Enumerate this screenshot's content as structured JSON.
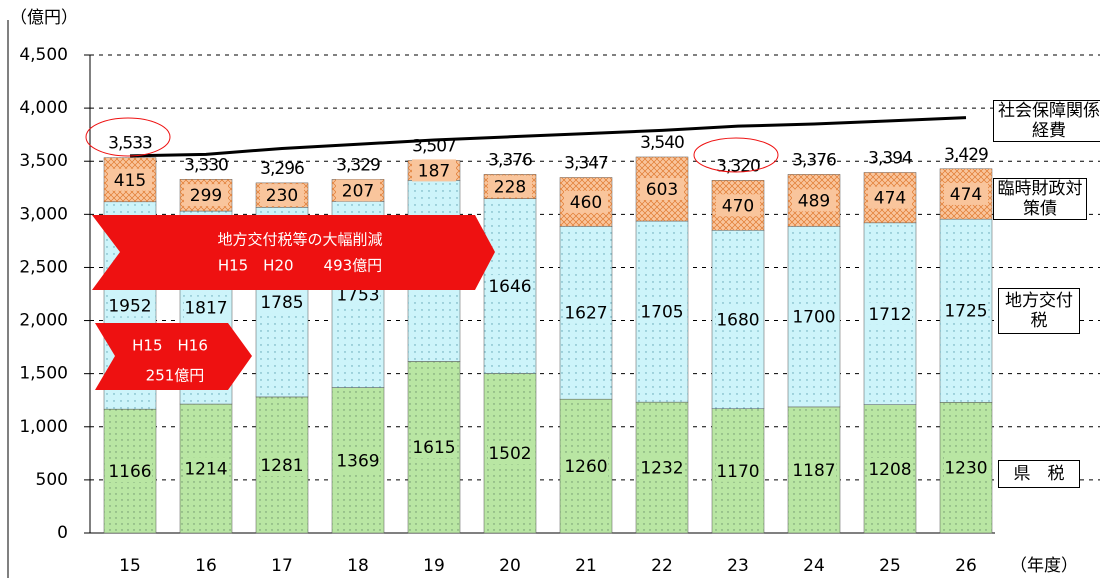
{
  "chart_data": {
    "type": "stacked_bar_line",
    "y_label": "（億円）",
    "x_label": "（年度）",
    "categories": [
      "15",
      "16",
      "17",
      "18",
      "19",
      "20",
      "21",
      "22",
      "23",
      "24",
      "25",
      "26"
    ],
    "series": [
      {
        "name": "県　税",
        "color": "#b9e6a3",
        "values": [
          1166,
          1214,
          1281,
          1369,
          1615,
          1502,
          1260,
          1232,
          1170,
          1187,
          1208,
          1230
        ]
      },
      {
        "name": "地方交付税",
        "color": "#cdf4fa",
        "values": [
          1952,
          1817,
          1785,
          1753,
          1705,
          1646,
          1627,
          1705,
          1680,
          1700,
          1712,
          1725
        ]
      },
      {
        "name": "臨時財政対策債",
        "color": "#f9c59c",
        "values": [
          415,
          299,
          230,
          207,
          187,
          228,
          460,
          603,
          470,
          489,
          474,
          474
        ]
      },
      {
        "name": "社会保障関係経費",
        "color": "#000000",
        "kind": "line",
        "values": [
          3550,
          3565,
          3620,
          3660,
          3700,
          3730,
          3760,
          3790,
          3830,
          3850,
          3880,
          3910
        ]
      }
    ],
    "totals": [
      3533,
      3330,
      3296,
      3329,
      3507,
      3376,
      3347,
      3540,
      3320,
      3376,
      3394,
      3429
    ],
    "total_labels": [
      "3,533",
      "3,330",
      "3,296",
      "3,329",
      "3,507",
      "3,376",
      "3,347",
      "3,540",
      "3,320",
      "3,376",
      "3,394",
      "3,429"
    ],
    "annotations": [
      "地方交付税等の大幅削減",
      "H15　H20　　493億円",
      "H15　H16",
      "251億円"
    ],
    "ylim": [
      0,
      4500
    ],
    "yticks": [
      0,
      500,
      {
        "value": 1000,
        "label": "1,000"
      },
      {
        "value": 1500,
        "label": "1,500"
      },
      {
        "value": 2000,
        "label": "2,000"
      },
      {
        "value": 2500,
        "label": "2,500"
      },
      {
        "value": 3000,
        "label": "3,000"
      },
      {
        "value": 3500,
        "label": "3,500"
      },
      {
        "value": 4000,
        "label": "4,000"
      },
      {
        "value": 4500,
        "label": "4,500"
      }
    ],
    "grid": true
  }
}
